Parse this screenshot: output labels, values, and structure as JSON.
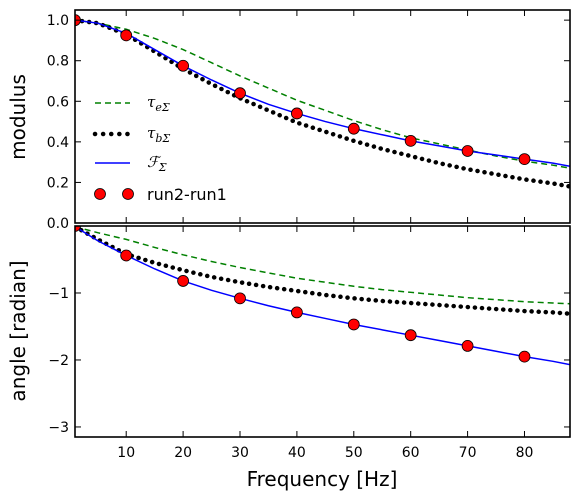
{
  "chart_data": [
    {
      "type": "line",
      "panel": "top",
      "ylabel": "modulus",
      "xlim": [
        1,
        88
      ],
      "ylim": [
        0.0,
        1.05
      ],
      "yticks": [
        "0.0",
        "0.2",
        "0.4",
        "0.6",
        "0.8",
        "1.0"
      ],
      "ytick_values": [
        0.0,
        0.2,
        0.4,
        0.6,
        0.8,
        1.0
      ],
      "grid": false,
      "legend_position": "lower-left",
      "series": [
        {
          "name": "τ_eΣ",
          "style": "dashed",
          "color": "#008000",
          "x": [
            1,
            5,
            10,
            15,
            20,
            25,
            30,
            35,
            40,
            45,
            50,
            55,
            60,
            65,
            70,
            75,
            80,
            85,
            88
          ],
          "y": [
            1.0,
            0.985,
            0.955,
            0.91,
            0.855,
            0.79,
            0.725,
            0.665,
            0.605,
            0.555,
            0.505,
            0.46,
            0.42,
            0.39,
            0.36,
            0.33,
            0.305,
            0.285,
            0.27
          ]
        },
        {
          "name": "τ_bΣ",
          "style": "dotted",
          "color": "#000000",
          "x": [
            1,
            5,
            10,
            15,
            20,
            25,
            30,
            35,
            40,
            45,
            50,
            55,
            60,
            65,
            70,
            75,
            80,
            85,
            88
          ],
          "y": [
            1.0,
            0.985,
            0.93,
            0.845,
            0.76,
            0.685,
            0.615,
            0.555,
            0.495,
            0.45,
            0.405,
            0.365,
            0.33,
            0.295,
            0.265,
            0.24,
            0.215,
            0.195,
            0.18
          ]
        },
        {
          "name": "ℱ_Σ",
          "style": "solid",
          "color": "#0000ff",
          "x": [
            1,
            5,
            10,
            15,
            20,
            25,
            30,
            35,
            40,
            45,
            50,
            55,
            60,
            65,
            70,
            75,
            80,
            85,
            88
          ],
          "y": [
            1.0,
            0.985,
            0.935,
            0.855,
            0.775,
            0.705,
            0.64,
            0.585,
            0.54,
            0.5,
            0.465,
            0.435,
            0.405,
            0.38,
            0.355,
            0.335,
            0.315,
            0.295,
            0.28
          ]
        },
        {
          "name": "run2-run1",
          "style": "markers",
          "color": "#ff0000",
          "x": [
            1,
            10,
            20,
            30,
            40,
            50,
            60,
            70,
            80
          ],
          "y": [
            1.0,
            0.925,
            0.775,
            0.64,
            0.54,
            0.465,
            0.405,
            0.355,
            0.315
          ]
        }
      ]
    },
    {
      "type": "line",
      "panel": "bottom",
      "ylabel": "angle [radian]",
      "xlabel": "Frequency [Hz]",
      "xlim": [
        1,
        88
      ],
      "ylim": [
        -3.15,
        0.0
      ],
      "xticks": [
        "10",
        "20",
        "30",
        "40",
        "50",
        "60",
        "70",
        "80"
      ],
      "xtick_values": [
        10,
        20,
        30,
        40,
        50,
        60,
        70,
        80
      ],
      "yticks": [
        "−3",
        "−2",
        "−1"
      ],
      "ytick_values": [
        -3,
        -2,
        -1
      ],
      "grid": false,
      "series": [
        {
          "name": "τ_eΣ",
          "style": "dashed",
          "color": "#008000",
          "x": [
            1,
            5,
            10,
            15,
            20,
            25,
            30,
            35,
            40,
            45,
            50,
            55,
            60,
            65,
            70,
            75,
            80,
            85,
            88
          ],
          "y": [
            -0.01,
            -0.1,
            -0.2,
            -0.32,
            -0.43,
            -0.53,
            -0.62,
            -0.7,
            -0.78,
            -0.84,
            -0.9,
            -0.95,
            -0.99,
            -1.03,
            -1.07,
            -1.1,
            -1.13,
            -1.15,
            -1.16
          ]
        },
        {
          "name": "τ_bΣ",
          "style": "dotted",
          "color": "#000000",
          "x": [
            1,
            5,
            10,
            15,
            20,
            25,
            30,
            35,
            40,
            45,
            50,
            55,
            60,
            65,
            70,
            75,
            80,
            85,
            88
          ],
          "y": [
            -0.01,
            -0.2,
            -0.42,
            -0.55,
            -0.66,
            -0.76,
            -0.84,
            -0.91,
            -0.97,
            -1.03,
            -1.08,
            -1.12,
            -1.15,
            -1.18,
            -1.21,
            -1.24,
            -1.27,
            -1.29,
            -1.31
          ]
        },
        {
          "name": "ℱ_Σ",
          "style": "solid",
          "color": "#0000ff",
          "x": [
            1,
            5,
            10,
            15,
            20,
            25,
            30,
            35,
            40,
            45,
            50,
            55,
            60,
            65,
            70,
            75,
            80,
            85,
            88
          ],
          "y": [
            -0.01,
            -0.22,
            -0.44,
            -0.64,
            -0.82,
            -0.96,
            -1.08,
            -1.19,
            -1.29,
            -1.38,
            -1.47,
            -1.55,
            -1.63,
            -1.71,
            -1.79,
            -1.87,
            -1.95,
            -2.02,
            -2.07
          ]
        },
        {
          "name": "run2-run1",
          "style": "markers",
          "color": "#ff0000",
          "x": [
            1,
            10,
            20,
            30,
            40,
            50,
            60,
            70,
            80
          ],
          "y": [
            0.0,
            -0.44,
            -0.82,
            -1.08,
            -1.29,
            -1.47,
            -1.63,
            -1.79,
            -1.95
          ]
        }
      ]
    }
  ],
  "legend": {
    "entries": [
      {
        "label_base": "τ",
        "label_sub": "eΣ",
        "style": "dashed",
        "color": "#008000"
      },
      {
        "label_base": "τ",
        "label_sub": "bΣ",
        "style": "dotted",
        "color": "#000000"
      },
      {
        "label_base": "ℱ",
        "label_sub": "Σ",
        "style": "solid",
        "color": "#0000ff"
      },
      {
        "label_plain": "run2-run1",
        "style": "markers",
        "color": "#ff0000"
      }
    ]
  }
}
